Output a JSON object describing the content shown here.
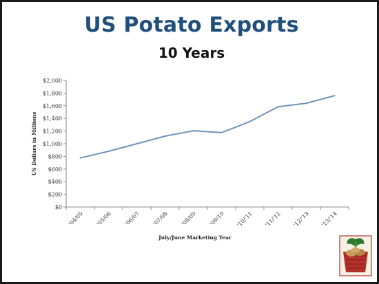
{
  "slide": {
    "title": "US Potato Exports",
    "subtitle": "10 Years"
  },
  "colors": {
    "title": "#1f4f7a",
    "line": "#6f93b8",
    "axis": "#8a8a8a",
    "logo_red": "#b3312a",
    "logo_green": "#2e7a2e"
  },
  "icons": {
    "logo": "potato-basket-logo-icon"
  },
  "chart_data": {
    "type": "line",
    "title": "",
    "xlabel": "July/June Marketing Year",
    "ylabel": "US Dollars in Millions",
    "categories": [
      "'04/05",
      "'05/06",
      "'06/07",
      "'07/08",
      "'08/09",
      "'09/10",
      "'10/'11",
      "'11/'12",
      "'12/'13",
      "'13/'14"
    ],
    "values": [
      775,
      880,
      1000,
      1120,
      1205,
      1175,
      1350,
      1585,
      1640,
      1760
    ],
    "ylim": [
      0,
      2000
    ],
    "yticks": [
      0,
      200,
      400,
      600,
      800,
      1000,
      1200,
      1400,
      1600,
      1800,
      2000
    ],
    "ytick_labels": [
      "$0",
      "$200",
      "$400",
      "$600",
      "$800",
      "$1,000",
      "$1,200",
      "$1,400",
      "$1,600",
      "$1,800",
      "$2,000"
    ],
    "grid": false,
    "legend": "none"
  }
}
